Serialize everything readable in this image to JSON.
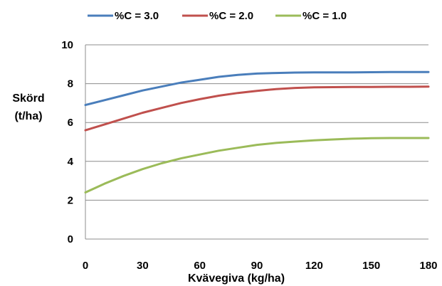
{
  "chart_data": {
    "type": "line",
    "xlabel": "Kvävegiva (kg/ha)",
    "ylabel_line1": "Skörd",
    "ylabel_line2": "(t/ha)",
    "xlim": [
      0,
      180
    ],
    "ylim": [
      0,
      10
    ],
    "x_ticks": [
      "0",
      "30",
      "60",
      "90",
      "120",
      "150",
      "180"
    ],
    "y_ticks": [
      "0",
      "2",
      "4",
      "6",
      "8",
      "10"
    ],
    "grid": "horizontal",
    "legend_position": "top",
    "x": [
      0,
      10,
      20,
      30,
      40,
      50,
      60,
      70,
      80,
      90,
      100,
      110,
      120,
      130,
      140,
      150,
      160,
      170,
      180
    ],
    "series": [
      {
        "name": "%C = 3.0",
        "color": "#4a7ebb",
        "values": [
          6.9,
          7.15,
          7.4,
          7.65,
          7.85,
          8.05,
          8.2,
          8.35,
          8.45,
          8.52,
          8.55,
          8.57,
          8.58,
          8.58,
          8.58,
          8.59,
          8.6,
          8.6,
          8.6
        ]
      },
      {
        "name": "%C = 2.0",
        "color": "#c0504d",
        "values": [
          5.6,
          5.9,
          6.2,
          6.5,
          6.75,
          7.0,
          7.2,
          7.38,
          7.52,
          7.63,
          7.72,
          7.78,
          7.81,
          7.82,
          7.83,
          7.83,
          7.84,
          7.84,
          7.85
        ]
      },
      {
        "name": "%C = 1.0",
        "color": "#9bbb59",
        "values": [
          2.4,
          2.85,
          3.25,
          3.6,
          3.9,
          4.15,
          4.35,
          4.55,
          4.7,
          4.85,
          4.95,
          5.02,
          5.08,
          5.13,
          5.17,
          5.19,
          5.2,
          5.2,
          5.2
        ]
      }
    ]
  }
}
